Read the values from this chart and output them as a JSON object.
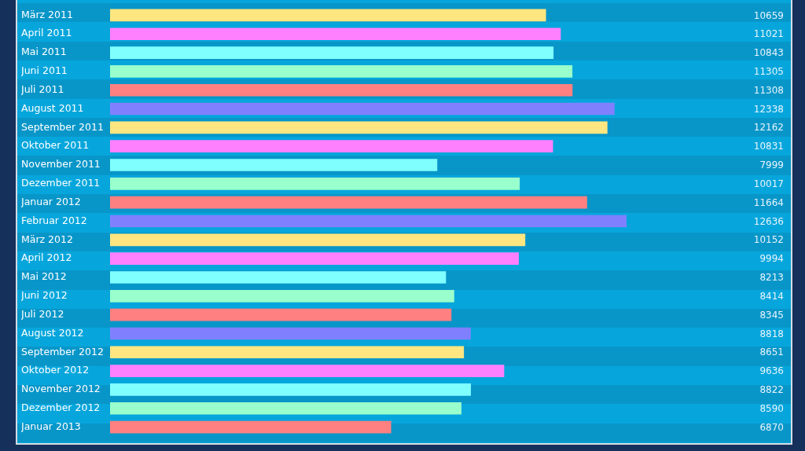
{
  "chart_data": {
    "type": "bar",
    "orientation": "horizontal",
    "categories": [
      "März 2011",
      "April 2011",
      "Mai 2011",
      "Juni 2011",
      "Juli 2011",
      "August 2011",
      "September 2011",
      "Oktober 2011",
      "November 2011",
      "Dezember 2011",
      "Januar 2012",
      "Februar 2012",
      "März 2012",
      "April 2012",
      "Mai 2012",
      "Juni 2012",
      "Juli 2012",
      "August 2012",
      "September 2012",
      "Oktober 2012",
      "November 2012",
      "Dezember 2012",
      "Januar 2013"
    ],
    "values": [
      10659,
      11021,
      10843,
      11305,
      11308,
      12338,
      12162,
      10831,
      7999,
      10017,
      11664,
      12636,
      10152,
      9994,
      8213,
      8414,
      8345,
      8818,
      8651,
      9636,
      8822,
      8590,
      6870
    ],
    "colors": [
      "#ffe680",
      "#ff80ff",
      "#80ffff",
      "#99ffcc",
      "#ff8080",
      "#8080ff",
      "#ffe680",
      "#ff80ff",
      "#80ffff",
      "#99ffcc",
      "#ff8080",
      "#8080ff",
      "#ffe680",
      "#ff80ff",
      "#80ffff",
      "#99ffcc",
      "#ff8080",
      "#8080ff",
      "#ffe680",
      "#ff80ff",
      "#80ffff",
      "#99ffcc",
      "#ff8080"
    ],
    "data_labels": true,
    "tick_labels": "y"
  }
}
